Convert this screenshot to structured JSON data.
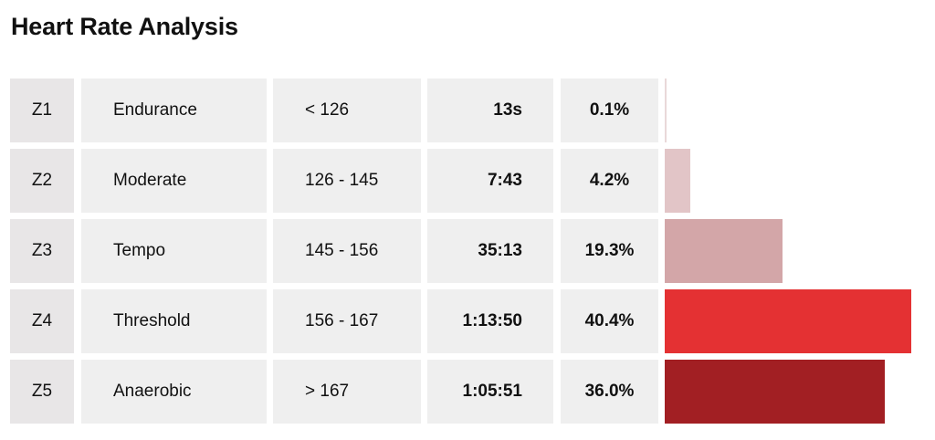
{
  "title": "Heart Rate Analysis",
  "chart_data": {
    "type": "table",
    "columns": [
      "zone",
      "name",
      "range",
      "time",
      "percent"
    ],
    "rows": [
      {
        "zone": "Z1",
        "name": "Endurance",
        "range": "< 126",
        "time": "13s",
        "percent_label": "0.1%",
        "percent": 0.1,
        "color": "#e9d8d9"
      },
      {
        "zone": "Z2",
        "name": "Moderate",
        "range": "126 - 145",
        "time": "7:43",
        "percent_label": "4.2%",
        "percent": 4.2,
        "color": "#e2c5c7"
      },
      {
        "zone": "Z3",
        "name": "Tempo",
        "range": "145 - 156",
        "time": "35:13",
        "percent_label": "19.3%",
        "percent": 19.3,
        "color": "#d3a6a8"
      },
      {
        "zone": "Z4",
        "name": "Threshold",
        "range": "156 - 167",
        "time": "1:13:50",
        "percent_label": "40.4%",
        "percent": 40.4,
        "color": "#e43133"
      },
      {
        "zone": "Z5",
        "name": "Anaerobic",
        "range": "> 167",
        "time": "1:05:51",
        "percent_label": "36.0%",
        "percent": 36.0,
        "color": "#a21f23"
      }
    ],
    "bar_max_percent": 40.4
  }
}
